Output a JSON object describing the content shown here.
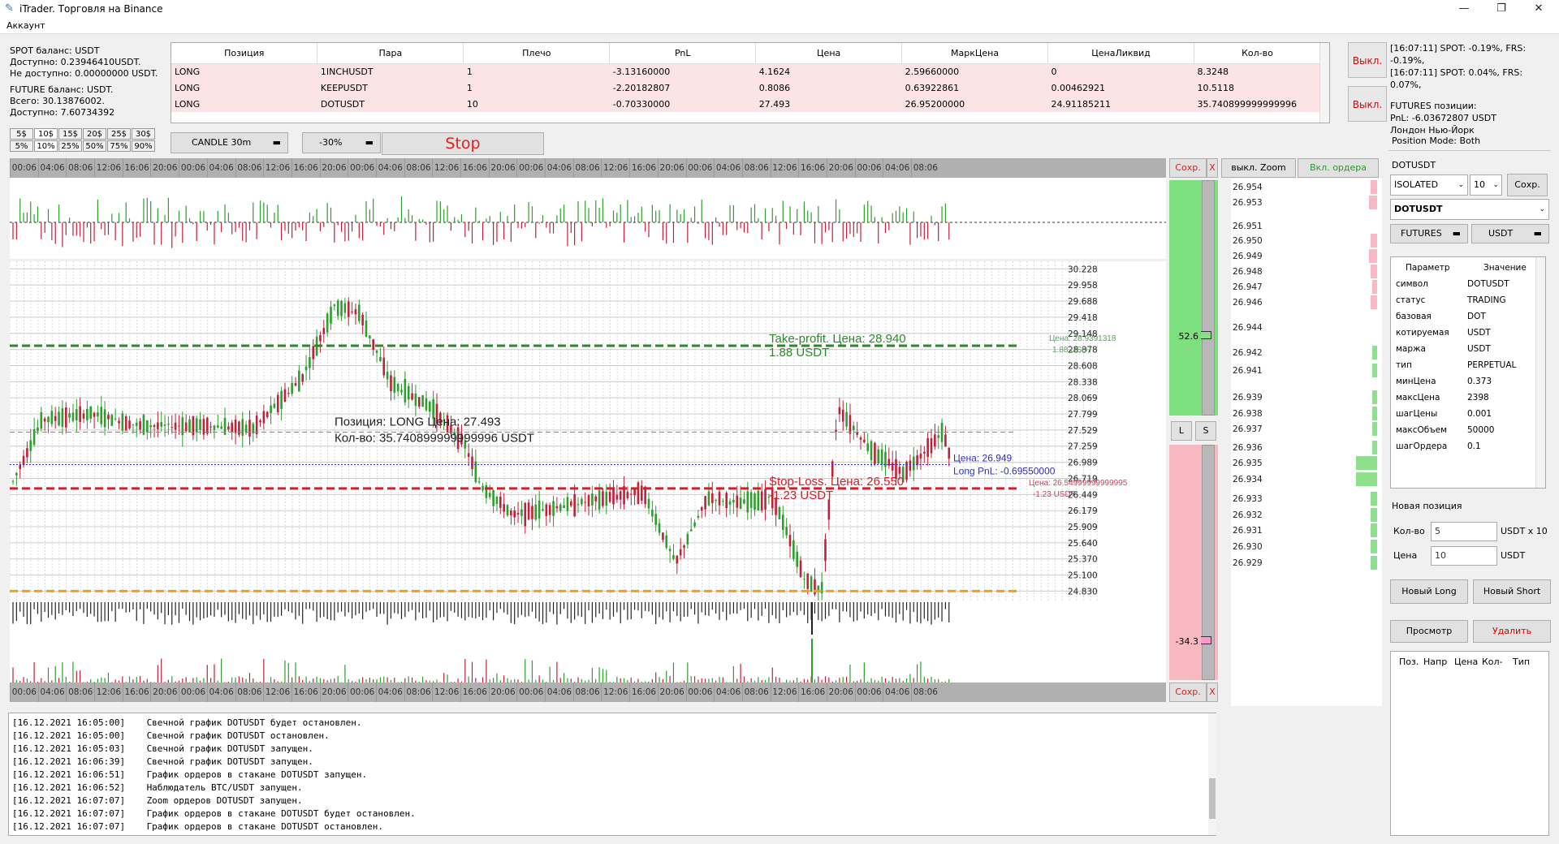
{
  "window": {
    "title": "iTrader. Торговля на Binance",
    "minimize": "—",
    "maximize": "❐",
    "close": "✕"
  },
  "menu": {
    "account": "Аккаунт"
  },
  "balance": {
    "spot_title": "SPOT баланс: USDT",
    "spot_available": "Доступно: 0.23946410USDT.",
    "spot_unavailable": "Не доступно: 0.00000000 USDT.",
    "futures_title": "FUTURE баланс: USDT.",
    "futures_total": "Всего: 30.13876002.",
    "futures_available": "Доступно: 7.60734392"
  },
  "positions": {
    "headers": [
      "Позиция",
      "Пара",
      "Плечо",
      "PnL",
      "Цена",
      "МаркЦена",
      "ЦенаЛиквид",
      "Кол-во"
    ],
    "rows": [
      [
        "LONG",
        "1INCHUSDT",
        "1",
        "-3.13160000",
        "4.1624",
        "2.59660000",
        "0",
        "8.3248"
      ],
      [
        "LONG",
        "KEEPUSDT",
        "1",
        "-2.20182807",
        "0.8086",
        "0.63922861",
        "0.00462921",
        "10.5118"
      ],
      [
        "LONG",
        "DOTUSDT",
        "10",
        "-0.70330000",
        "27.493",
        "26.95200000",
        "24.91185211",
        "35.740899999999996"
      ]
    ]
  },
  "toggles": {
    "spot_off": "Выкл.",
    "futures_off": "Выкл."
  },
  "right_log": {
    "line1": "[16:07:11] SPOT: -0.19%, FRS: -0.19%,",
    "line2": "[16:07:11] SPOT: 0.04%, FRS: 0.07%,",
    "futures_title": "FUTURES позиции:",
    "pnl": "PnL: -6.03672807 USDT",
    "city": "Лондон Нью-Йорк"
  },
  "amount_buttons": {
    "row1": [
      "5$",
      "10$",
      "15$",
      "20$",
      "25$",
      "30$"
    ],
    "row2": [
      "5%",
      "10%",
      "25%",
      "50%",
      "75%",
      "90%"
    ]
  },
  "toolbar": {
    "candle": "CANDLE 30m",
    "pct": "-30%",
    "stop": "Stop"
  },
  "time_labels": [
    "00:06",
    "04:06",
    "08:06",
    "12:06",
    "16:06",
    "20:06",
    "00:06",
    "04:06",
    "08:06",
    "12:06",
    "16:06",
    "20:06",
    "00:06",
    "04:06",
    "08:06",
    "12:06",
    "16:06",
    "20:06",
    "00:06",
    "04:06",
    "08:06",
    "12:06",
    "16:06",
    "20:06",
    "00:06",
    "04:06",
    "08:06",
    "12:06",
    "16:06",
    "20:06",
    "00:06",
    "04:06",
    "08:06"
  ],
  "y_labels": [
    "30.228",
    "29.958",
    "29.688",
    "29.418",
    "29.148",
    "28.878",
    "28.608",
    "28.338",
    "28.069",
    "27.799",
    "27.529",
    "27.259",
    "26.989",
    "26.719",
    "26.449",
    "26.179",
    "25.909",
    "25.640",
    "25.370",
    "25.100",
    "24.830"
  ],
  "annotations": {
    "tp_title": "Take-profit. Цена: 28.940",
    "tp_amount": "1.88 USDT",
    "tp_side": "Цена: 28.9391318",
    "tp_side2": "1.88 USDT",
    "pos_title": "Позиция: LONG Цена: 27.493",
    "pos_qty": "Кол-во: 35.740899999999996 USDT",
    "price_now": "Цена: 26.949",
    "long_pnl": "Long PnL: -0.69550000",
    "sl_title": "Stop-Loss. Цена: 26.550",
    "sl_amount": "-1.23 USDT",
    "sl_side": "Цена: 26.54999999999995",
    "sl_side2": "-1.23 USDT"
  },
  "zoom": {
    "save": "Сохр.",
    "x": "X",
    "off_zoom": "выкл. Zoom",
    "on_orders": "Вкл. ордера",
    "top_val": "52.6",
    "bot_val": "-34.3",
    "l": "L",
    "s": "S"
  },
  "orderbook_prices": [
    "26.954",
    "26.953",
    "26.951",
    "26.950",
    "26.949",
    "26.948",
    "26.947",
    "26.946",
    "26.944",
    "26.942",
    "26.941",
    "26.939",
    "26.938",
    "26.937",
    "26.936",
    "26.935",
    "26.934",
    "26.933",
    "26.932",
    "26.931",
    "26.930",
    "26.929"
  ],
  "side": {
    "position_mode": "Position Mode: Both",
    "symbol": "DOTUSDT",
    "margin": "ISOLATED",
    "leverage": "10",
    "save": "Сохр.",
    "pair": "DOTUSDT",
    "market": "FUTURES",
    "quote": "USDT",
    "param_header": "Параметр",
    "value_header": "Значение",
    "params": [
      [
        "символ",
        "DOTUSDT"
      ],
      [
        "статус",
        "TRADING"
      ],
      [
        "базовая",
        "DOT"
      ],
      [
        "котируемая",
        "USDT"
      ],
      [
        "маржа",
        "USDT"
      ],
      [
        "тип",
        "PERPETUAL"
      ],
      [
        "минЦена",
        "0.373"
      ],
      [
        "максЦена",
        "2398"
      ],
      [
        "шагЦены",
        "0.001"
      ],
      [
        "максОбъем",
        "50000"
      ],
      [
        "шагОрдера",
        "0.1"
      ]
    ],
    "new_position": "Новая позиция",
    "qty_label": "Кол-во",
    "qty_value": "5",
    "qty_unit": "USDT x 10",
    "price_label": "Цена",
    "price_value": "10",
    "price_unit": "USDT",
    "new_long": "Новый Long",
    "new_short": "Новый Short",
    "preview": "Просмотр",
    "delete": "Удалить",
    "orders_headers": [
      "Поз.",
      "Напр",
      "Цена",
      "Кол-",
      "Тип"
    ]
  },
  "log_lines": [
    "[16.12.2021 16:05:00]    Свечной график DOTUSDT будет остановлен.",
    "[16.12.2021 16:05:00]    Свечной график DOTUSDT остановлен.",
    "[16.12.2021 16:05:03]    Свечной график DOTUSDT запущен.",
    "[16.12.2021 16:06:39]    Свечной график DOTUSDT запущен.",
    "[16.12.2021 16:06:51]    График ордеров в стакане DOTUSDT запущен.",
    "[16.12.2021 16:06:52]    Наблюдатель BTC/USDT запущен.",
    "[16.12.2021 16:07:07]    Zoom ордеров DOTUSDT запущен.",
    "[16.12.2021 16:07:07]    График ордеров в стакане DOTUSDT будет остановлен.",
    "[16.12.2021 16:07:07]    График ордеров в стакане DOTUSDT остановлен."
  ],
  "colors": {
    "green": "#2e9e2e",
    "red": "#c0203a",
    "tp": "#2a8a2a",
    "sl": "#d0202a",
    "orange": "#f0a020",
    "blue": "#3030c0"
  }
}
